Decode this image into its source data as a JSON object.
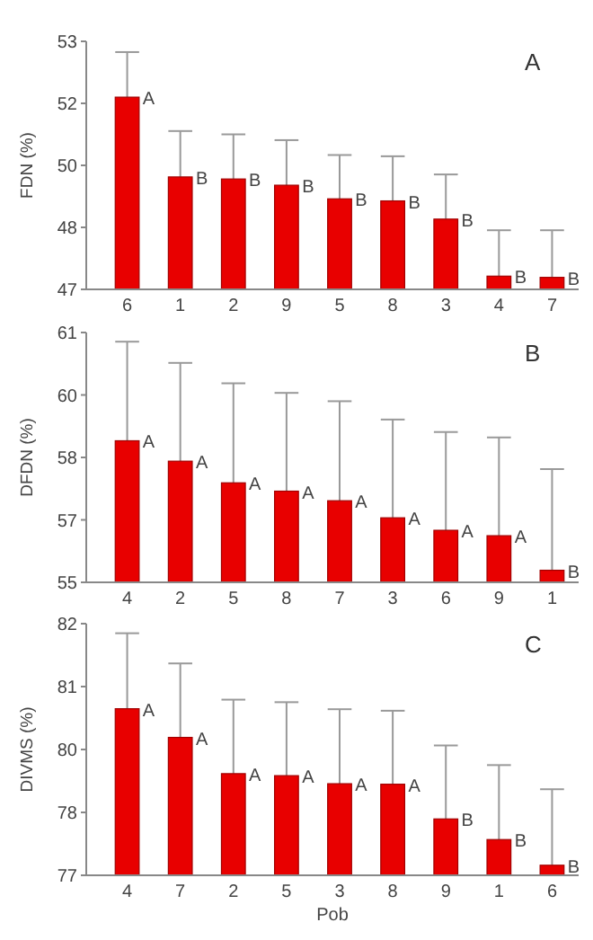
{
  "chart_data": [
    {
      "type": "bar",
      "ylabel": "FDN (%)",
      "categories": [
        "6",
        "1",
        "2",
        "9",
        "5",
        "8",
        "3",
        "4",
        "7"
      ],
      "ylim": [
        47,
        53
      ],
      "yticks": [
        47,
        {
          "value": 48.5,
          "label": "48"
        },
        50,
        {
          "value": 51.5,
          "label": "52"
        },
        53
      ],
      "color": "#e80000",
      "values": [
        51.65,
        49.72,
        49.67,
        49.52,
        49.19,
        49.14,
        48.7,
        47.32,
        47.29
      ],
      "errors": [
        [
          51.65,
          52.74
        ],
        [
          49.72,
          50.83
        ],
        [
          49.67,
          50.75
        ],
        [
          49.52,
          50.61
        ],
        [
          49.19,
          50.25
        ],
        [
          49.14,
          50.22
        ],
        [
          48.7,
          49.78
        ],
        [
          47.32,
          48.43
        ],
        [
          47.29,
          48.43
        ]
      ],
      "annotations": [
        "A",
        {
          "text": "A",
          "x": "6",
          "y": 51.65
        },
        {
          "text": "B",
          "x": "1",
          "y": 49.72
        },
        {
          "text": "B",
          "x": "2",
          "y": 49.67
        },
        {
          "text": "B",
          "x": "9",
          "y": 49.52
        },
        {
          "text": "B",
          "x": "5",
          "y": 49.19
        },
        {
          "text": "B",
          "x": "8",
          "y": 49.14
        },
        {
          "text": "B",
          "x": "3",
          "y": 48.7
        },
        {
          "text": "B",
          "x": "4",
          "y": 47.32
        },
        {
          "text": "B",
          "x": "7",
          "y": 47.29
        }
      ]
    },
    {
      "type": "bar",
      "ylabel": "DFDN (%)",
      "categories": [
        "4",
        "2",
        "5",
        "8",
        "7",
        "3",
        "6",
        "9",
        "1"
      ],
      "ylim": [
        55,
        61
      ],
      "yticks": [
        55,
        {
          "value": 56.5,
          "label": "57"
        },
        58,
        {
          "value": 59.5,
          "label": "60"
        },
        61
      ],
      "color": "#e80000",
      "values": [
        58.4,
        57.91,
        57.39,
        57.19,
        56.96,
        56.55,
        56.25,
        56.12,
        55.29
      ],
      "errors": [
        [
          58.4,
          60.78
        ],
        [
          57.91,
          60.27
        ],
        [
          57.39,
          59.78
        ],
        [
          57.19,
          59.55
        ],
        [
          56.96,
          59.35
        ],
        [
          56.55,
          58.91
        ],
        [
          56.25,
          58.61
        ],
        [
          56.12,
          58.48
        ],
        [
          55.29,
          57.72
        ]
      ],
      "annotations": [
        "B",
        {
          "text": "A",
          "x": "4",
          "y": 58.4
        },
        {
          "text": "A",
          "x": "2",
          "y": 57.91
        },
        {
          "text": "A",
          "x": "5",
          "y": 57.39
        },
        {
          "text": "A",
          "x": "8",
          "y": 57.19
        },
        {
          "text": "A",
          "x": "7",
          "y": 56.96
        },
        {
          "text": "A",
          "x": "3",
          "y": 56.55
        },
        {
          "text": "A",
          "x": "6",
          "y": 56.25
        },
        {
          "text": "A",
          "x": "9",
          "y": 56.12
        },
        {
          "text": "B",
          "x": "1",
          "y": 55.29
        }
      ]
    },
    {
      "type": "bar",
      "ylabel": "DIVMS (%)",
      "xlabel": "Pob",
      "categories": [
        "4",
        "7",
        "2",
        "5",
        "3",
        "8",
        "9",
        "1",
        "6"
      ],
      "ylim": [
        77,
        82
      ],
      "yticks": [
        77,
        {
          "value": 78.25,
          "label": "78"
        },
        {
          "value": 79.5,
          "label": "80"
        },
        {
          "value": 80.75,
          "label": "81"
        },
        82
      ],
      "color": "#e80000",
      "values": [
        80.31,
        79.74,
        79.02,
        78.98,
        78.82,
        78.81,
        78.12,
        77.71,
        77.2
      ],
      "errors": [
        [
          80.31,
          81.81
        ],
        [
          79.74,
          81.21
        ],
        [
          79.02,
          80.49
        ],
        [
          78.98,
          80.44
        ],
        [
          78.82,
          80.3
        ],
        [
          78.81,
          80.27
        ],
        [
          78.12,
          79.58
        ],
        [
          77.71,
          79.19
        ],
        [
          77.2,
          78.71
        ]
      ],
      "annotations": [
        "C",
        {
          "text": "A",
          "x": "4",
          "y": 80.31
        },
        {
          "text": "A",
          "x": "7",
          "y": 79.74
        },
        {
          "text": "A",
          "x": "2",
          "y": 79.02
        },
        {
          "text": "A",
          "x": "5",
          "y": 78.98
        },
        {
          "text": "A",
          "x": "3",
          "y": 78.82
        },
        {
          "text": "A",
          "x": "8",
          "y": 78.81
        },
        {
          "text": "B",
          "x": "9",
          "y": 78.12
        },
        {
          "text": "B",
          "x": "1",
          "y": 77.71
        },
        {
          "text": "B",
          "x": "6",
          "y": 77.2
        }
      ]
    }
  ]
}
